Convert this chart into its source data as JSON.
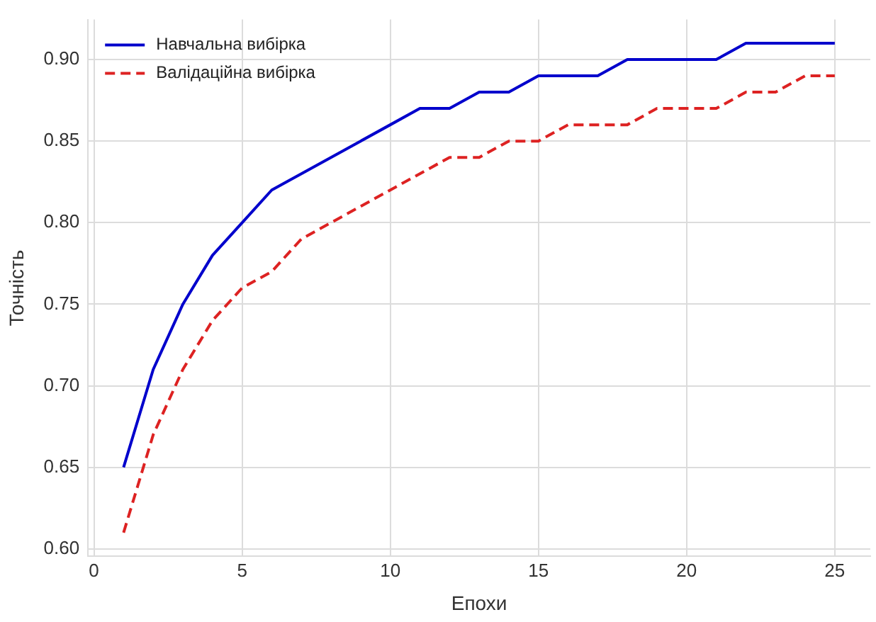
{
  "chart_data": {
    "type": "line",
    "xlabel": "Епохи",
    "ylabel": "Точність",
    "x": [
      1,
      2,
      3,
      4,
      5,
      6,
      7,
      8,
      9,
      10,
      11,
      12,
      13,
      14,
      15,
      16,
      17,
      18,
      19,
      20,
      21,
      22,
      23,
      24,
      25
    ],
    "series": [
      {
        "name": "Навчальна вибірка",
        "color": "#0000cc",
        "line_style": "solid",
        "values": [
          0.65,
          0.71,
          0.75,
          0.78,
          0.8,
          0.82,
          0.83,
          0.84,
          0.85,
          0.86,
          0.87,
          0.87,
          0.88,
          0.88,
          0.89,
          0.89,
          0.89,
          0.9,
          0.9,
          0.9,
          0.9,
          0.91,
          0.91,
          0.91,
          0.91
        ]
      },
      {
        "name": "Валідаційна вибірка",
        "color": "#dd2222",
        "line_style": "dashed",
        "values": [
          0.61,
          0.67,
          0.71,
          0.74,
          0.76,
          0.77,
          0.79,
          0.8,
          0.81,
          0.82,
          0.83,
          0.84,
          0.84,
          0.85,
          0.85,
          0.86,
          0.86,
          0.86,
          0.87,
          0.87,
          0.87,
          0.88,
          0.88,
          0.89,
          0.89
        ]
      }
    ],
    "xlim": [
      -0.2,
      26.2
    ],
    "xticks": [
      0,
      5,
      10,
      15,
      20,
      25
    ],
    "ylim": [
      0.5955,
      0.9245
    ],
    "yticks": [
      {
        "value": 0.6,
        "label": "0.60"
      },
      {
        "value": 0.65,
        "label": "0.65"
      },
      {
        "value": 0.7,
        "label": "0.70"
      },
      {
        "value": 0.75,
        "label": "0.75"
      },
      {
        "value": 0.8,
        "label": "0.80"
      },
      {
        "value": 0.85,
        "label": "0.85"
      },
      {
        "value": 0.9,
        "label": "0.90"
      }
    ],
    "grid": true,
    "legend": "top left",
    "marker": "none"
  }
}
